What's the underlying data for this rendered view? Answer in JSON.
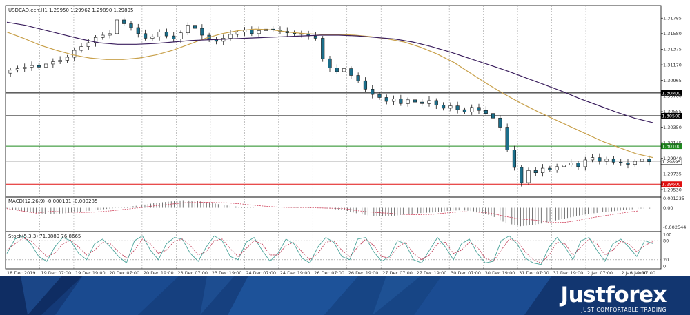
{
  "chart_data": {
    "type": "candlestick",
    "title": "USDCAD.ecn,H1  1.29950 1.29962 1.29890 1.29895",
    "ylim": [
      1.2943,
      1.3195
    ],
    "y_ticks": [
      "1.31785",
      "1.31580",
      "1.31375",
      "1.31170",
      "1.30965",
      "1.30760",
      "1.30555",
      "1.30350",
      "1.30145",
      "1.29940",
      "1.29735",
      "1.29530"
    ],
    "x_labels": [
      "18 Dec 2019",
      "19 Dec 07:00",
      "19 Dec 19:00",
      "20 Dec 07:00",
      "20 Dec 19:00",
      "23 Dec 07:00",
      "23 Dec 19:00",
      "24 Dec 07:00",
      "24 Dec 19:00",
      "26 Dec 07:00",
      "26 Dec 19:00",
      "27 Dec 07:00",
      "27 Dec 19:00",
      "30 Dec 07:00",
      "30 Dec 19:00",
      "31 Dec 07:00",
      "31 Dec 19:00",
      "2 Jan 07:00",
      "2 Jan 19:00",
      "3 Jan 07:00"
    ],
    "levels": [
      {
        "label": "1.30800",
        "value": 1.308,
        "color": "#000000"
      },
      {
        "label": "1.30500",
        "value": 1.305,
        "color": "#000000"
      },
      {
        "label": "1.30100",
        "value": 1.301,
        "color": "#1f8a1f"
      },
      {
        "label": "1.29600",
        "value": 1.296,
        "color": "#e01010"
      }
    ],
    "current_price": {
      "label": "1.29895",
      "value": 1.29895
    },
    "closes": [
      1.311,
      1.3112,
      1.3114,
      1.3116,
      1.3114,
      1.3118,
      1.3121,
      1.3123,
      1.3127,
      1.3136,
      1.3141,
      1.3146,
      1.3153,
      1.3156,
      1.3158,
      1.3176,
      1.3171,
      1.3166,
      1.3158,
      1.3152,
      1.3154,
      1.316,
      1.3155,
      1.3151,
      1.3159,
      1.3169,
      1.3165,
      1.3156,
      1.315,
      1.3148,
      1.3152,
      1.3157,
      1.316,
      1.3163,
      1.3158,
      1.3162,
      1.3164,
      1.3163,
      1.3161,
      1.3159,
      1.3158,
      1.3157,
      1.3155,
      1.3152,
      1.3125,
      1.3113,
      1.3108,
      1.3112,
      1.3103,
      1.3096,
      1.3085,
      1.3078,
      1.3074,
      1.3069,
      1.3072,
      1.3066,
      1.3071,
      1.3068,
      1.3066,
      1.307,
      1.3064,
      1.306,
      1.3063,
      1.3058,
      1.3055,
      1.3061,
      1.3057,
      1.3053,
      1.3047,
      1.3035,
      1.3005,
      1.2982,
      1.2962,
      1.2978,
      1.2975,
      1.2981,
      1.2979,
      1.2983,
      1.2985,
      1.2988,
      1.2983,
      1.2992,
      1.2995,
      1.299,
      1.2993,
      1.2989,
      1.2988,
      1.2986,
      1.299,
      1.2993,
      1.29895
    ],
    "ma_tan": [
      1.316,
      1.3152,
      1.3143,
      1.3136,
      1.313,
      1.3126,
      1.3124,
      1.3124,
      1.3126,
      1.313,
      1.3136,
      1.3144,
      1.3152,
      1.3158,
      1.3162,
      1.3164,
      1.3163,
      1.316,
      1.3158,
      1.3157,
      1.3157,
      1.3156,
      1.3154,
      1.3151,
      1.3147,
      1.314,
      1.3131,
      1.312,
      1.3106,
      1.3092,
      1.3079,
      1.3067,
      1.3056,
      1.3046,
      1.3036,
      1.3026,
      1.3016,
      1.3008,
      1.3,
      1.2995
    ],
    "ma_purple": [
      1.3173,
      1.3169,
      1.3163,
      1.3157,
      1.3151,
      1.3146,
      1.3144,
      1.3144,
      1.3145,
      1.3147,
      1.3149,
      1.315,
      1.3151,
      1.3152,
      1.3153,
      1.3154,
      1.3155,
      1.3156,
      1.3156,
      1.3155,
      1.3153,
      1.3151,
      1.3147,
      1.3141,
      1.3134,
      1.3126,
      1.3118,
      1.311,
      1.3101,
      1.3092,
      1.3083,
      1.3073,
      1.3064,
      1.3055,
      1.3047,
      1.3041
    ],
    "macd": {
      "title": "MACD(12,26,9) -0.000131 -0.000285",
      "ylim": [
        -0.0031,
        0.0014
      ],
      "y_ticks": [
        "0.001235",
        "0.00",
        "-0.002544"
      ],
      "histogram": [
        -0.0001,
        -0.0004,
        -0.0007,
        -0.0008,
        -0.0007,
        -0.0005,
        -0.0003,
        -0.0001,
        0.0001,
        0.0003,
        0.0006,
        0.0008,
        0.001,
        0.0009,
        0.0006,
        0.0003,
        0.0001,
        0.0,
        0.0,
        0.0,
        0.0001,
        0.0,
        -0.0001,
        -0.0003,
        -0.0008,
        -0.0011,
        -0.0011,
        -0.0009,
        -0.0007,
        -0.0006,
        -0.0004,
        -0.0003,
        -0.0005,
        -0.001,
        -0.002,
        -0.0024,
        -0.0022,
        -0.0018,
        -0.0014,
        -0.001,
        -0.0007,
        -0.0005,
        -0.0003,
        -0.0001
      ]
    },
    "stoch": {
      "title": "Stoch(5,3,3) 71.3889 76.8665",
      "ylim": [
        0,
        100
      ],
      "y_ticks": [
        "100",
        "80",
        "20",
        "0"
      ],
      "levels": [
        80,
        20
      ],
      "main": [
        40,
        85,
        95,
        70,
        30,
        15,
        60,
        90,
        80,
        40,
        20,
        70,
        85,
        60,
        30,
        10,
        80,
        95,
        50,
        20,
        70,
        90,
        85,
        40,
        15,
        60,
        95,
        80,
        30,
        20,
        75,
        90,
        50,
        15,
        40,
        85,
        70,
        25,
        10,
        60,
        90,
        75,
        30,
        20,
        85,
        90,
        45,
        15,
        30,
        80,
        70,
        20,
        10,
        50,
        90,
        60,
        20,
        70,
        85,
        40,
        10,
        15,
        80,
        95,
        70,
        25,
        10,
        5,
        60,
        90,
        60,
        20,
        80,
        90,
        50,
        15,
        70,
        85,
        60,
        30,
        80,
        71
      ],
      "signal": [
        50,
        70,
        88,
        80,
        55,
        30,
        40,
        70,
        82,
        60,
        35,
        50,
        75,
        70,
        45,
        25,
        50,
        85,
        70,
        40,
        50,
        78,
        85,
        65,
        35,
        45,
        80,
        85,
        55,
        30,
        55,
        80,
        70,
        35,
        35,
        65,
        75,
        45,
        20,
        40,
        75,
        80,
        50,
        30,
        60,
        85,
        65,
        30,
        25,
        60,
        75,
        40,
        20,
        35,
        70,
        75,
        40,
        50,
        75,
        60,
        25,
        15,
        50,
        85,
        80,
        45,
        20,
        10,
        35,
        75,
        70,
        35,
        60,
        85,
        70,
        35,
        50,
        78,
        70,
        45,
        65,
        77
      ]
    }
  },
  "brand": {
    "name": "Justforex",
    "tagline": "JUST COMFORTABLE TRADING"
  }
}
